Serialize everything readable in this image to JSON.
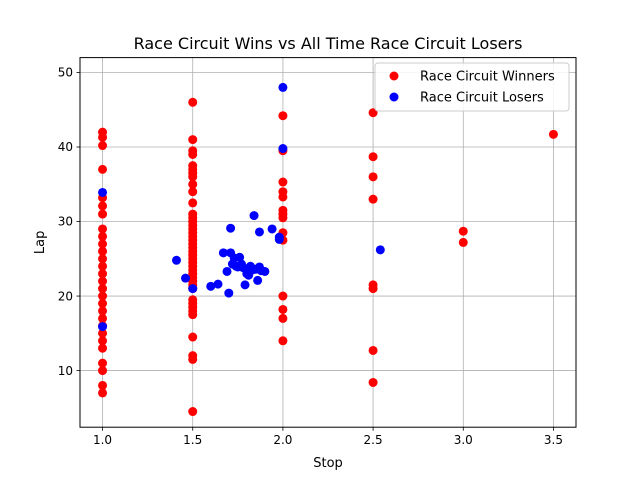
{
  "chart_data": {
    "type": "scatter",
    "title": "Race Circuit Wins vs All Time Race Circuit Losers",
    "xlabel": "Stop",
    "ylabel": "Lap",
    "xlim": [
      0.875,
      3.625
    ],
    "ylim": [
      2.4,
      52.0
    ],
    "xticks": [
      1.0,
      1.5,
      2.0,
      2.5,
      3.0,
      3.5
    ],
    "xtick_labels": [
      "1.0",
      "1.5",
      "2.0",
      "2.5",
      "3.0",
      "3.5"
    ],
    "yticks": [
      10,
      20,
      30,
      40,
      50
    ],
    "ytick_labels": [
      "10",
      "20",
      "30",
      "40",
      "50"
    ],
    "grid": true,
    "legend_position": "top-right",
    "series": [
      {
        "name": "Race Circuit Winners",
        "color": "#ff0000",
        "points": [
          [
            1.0,
            42.0
          ],
          [
            1.0,
            41.3
          ],
          [
            1.0,
            40.2
          ],
          [
            1.0,
            37.0
          ],
          [
            1.0,
            33.2
          ],
          [
            1.0,
            32.1
          ],
          [
            1.0,
            31.0
          ],
          [
            1.0,
            29.0
          ],
          [
            1.0,
            28.0
          ],
          [
            1.0,
            27.0
          ],
          [
            1.0,
            26.0
          ],
          [
            1.0,
            25.0
          ],
          [
            1.0,
            24.0
          ],
          [
            1.0,
            23.0
          ],
          [
            1.0,
            22.0
          ],
          [
            1.0,
            21.0
          ],
          [
            1.0,
            20.0
          ],
          [
            1.0,
            19.0
          ],
          [
            1.0,
            18.0
          ],
          [
            1.0,
            17.0
          ],
          [
            1.0,
            16.0
          ],
          [
            1.0,
            15.0
          ],
          [
            1.0,
            14.0
          ],
          [
            1.0,
            13.0
          ],
          [
            1.0,
            11.0
          ],
          [
            1.0,
            10.0
          ],
          [
            1.0,
            8.0
          ],
          [
            1.0,
            7.0
          ],
          [
            1.5,
            46.0
          ],
          [
            1.5,
            41.0
          ],
          [
            1.5,
            39.5
          ],
          [
            1.5,
            39.0
          ],
          [
            1.5,
            37.5
          ],
          [
            1.5,
            37.0
          ],
          [
            1.5,
            36.5
          ],
          [
            1.5,
            36.0
          ],
          [
            1.5,
            35.0
          ],
          [
            1.5,
            34.0
          ],
          [
            1.5,
            32.5
          ],
          [
            1.5,
            31.0
          ],
          [
            1.5,
            30.5
          ],
          [
            1.5,
            30.0
          ],
          [
            1.5,
            29.5
          ],
          [
            1.5,
            29.0
          ],
          [
            1.5,
            28.5
          ],
          [
            1.5,
            28.0
          ],
          [
            1.5,
            27.5
          ],
          [
            1.5,
            27.0
          ],
          [
            1.5,
            26.5
          ],
          [
            1.5,
            26.0
          ],
          [
            1.5,
            25.5
          ],
          [
            1.5,
            25.0
          ],
          [
            1.5,
            24.5
          ],
          [
            1.5,
            24.0
          ],
          [
            1.5,
            23.5
          ],
          [
            1.5,
            23.0
          ],
          [
            1.5,
            22.5
          ],
          [
            1.5,
            22.0
          ],
          [
            1.5,
            21.5
          ],
          [
            1.5,
            21.0
          ],
          [
            1.5,
            19.5
          ],
          [
            1.5,
            19.0
          ],
          [
            1.5,
            18.5
          ],
          [
            1.5,
            18.0
          ],
          [
            1.5,
            17.5
          ],
          [
            1.5,
            14.5
          ],
          [
            1.5,
            12.0
          ],
          [
            1.5,
            11.5
          ],
          [
            1.5,
            4.5
          ],
          [
            2.0,
            44.2
          ],
          [
            2.0,
            39.5
          ],
          [
            2.0,
            35.3
          ],
          [
            2.0,
            34.0
          ],
          [
            2.0,
            33.3
          ],
          [
            2.0,
            31.5
          ],
          [
            2.0,
            31.0
          ],
          [
            2.0,
            30.5
          ],
          [
            2.0,
            28.5
          ],
          [
            2.0,
            27.5
          ],
          [
            2.0,
            20.0
          ],
          [
            2.0,
            18.2
          ],
          [
            2.0,
            17.0
          ],
          [
            2.0,
            14.0
          ],
          [
            2.5,
            44.6
          ],
          [
            2.5,
            38.7
          ],
          [
            2.5,
            36.0
          ],
          [
            2.5,
            33.0
          ],
          [
            2.5,
            21.5
          ],
          [
            2.5,
            21.0
          ],
          [
            2.5,
            12.7
          ],
          [
            2.5,
            8.4
          ],
          [
            3.0,
            28.7
          ],
          [
            3.0,
            27.2
          ],
          [
            3.5,
            41.7
          ]
        ]
      },
      {
        "name": "Race Circuit Losers",
        "color": "#0000ff",
        "points": [
          [
            1.0,
            33.9
          ],
          [
            1.0,
            15.9
          ],
          [
            1.41,
            24.8
          ],
          [
            1.46,
            22.4
          ],
          [
            1.5,
            21.0
          ],
          [
            1.6,
            21.3
          ],
          [
            1.64,
            21.6
          ],
          [
            1.67,
            25.8
          ],
          [
            1.69,
            23.3
          ],
          [
            1.7,
            20.4
          ],
          [
            1.71,
            29.1
          ],
          [
            1.71,
            25.8
          ],
          [
            1.72,
            24.3
          ],
          [
            1.73,
            25.1
          ],
          [
            1.74,
            24.0
          ],
          [
            1.75,
            23.9
          ],
          [
            1.76,
            25.2
          ],
          [
            1.77,
            24.3
          ],
          [
            1.78,
            23.8
          ],
          [
            1.79,
            21.5
          ],
          [
            1.8,
            23.0
          ],
          [
            1.81,
            22.8
          ],
          [
            1.82,
            24.0
          ],
          [
            1.83,
            23.5
          ],
          [
            1.84,
            30.8
          ],
          [
            1.85,
            23.6
          ],
          [
            1.86,
            22.1
          ],
          [
            1.87,
            28.6
          ],
          [
            1.87,
            23.9
          ],
          [
            1.88,
            23.4
          ],
          [
            1.9,
            23.3
          ],
          [
            1.94,
            29.0
          ],
          [
            1.98,
            27.9
          ],
          [
            1.98,
            27.6
          ],
          [
            2.0,
            48.0
          ],
          [
            2.0,
            39.8
          ],
          [
            2.54,
            26.2
          ]
        ]
      }
    ]
  }
}
